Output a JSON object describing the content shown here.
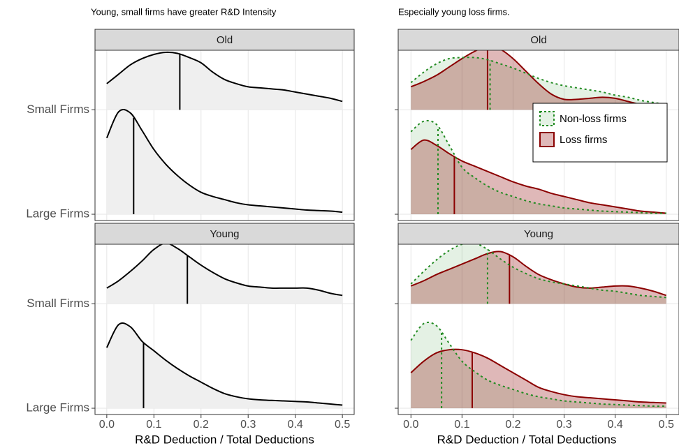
{
  "chart_data": [
    {
      "type": "ridgeline",
      "title": "Young, small firms have greater R&D Intensity",
      "x_label": "R&D Deduction / Total Deductions",
      "x": [
        0,
        0.025,
        0.05,
        0.075,
        0.1,
        0.125,
        0.15,
        0.175,
        0.2,
        0.225,
        0.25,
        0.275,
        0.3,
        0.325,
        0.35,
        0.375,
        0.4,
        0.425,
        0.45,
        0.475,
        0.5
      ],
      "xlim": [
        -0.025,
        0.525
      ],
      "xticks": [
        {
          "value": 0,
          "label": "0.0"
        },
        0.1,
        0.2,
        0.3,
        0.4,
        0.5
      ],
      "ylim": [
        -0.06,
        1.57
      ],
      "grid": true,
      "categories": [
        "Small Firms",
        "Large Firms"
      ],
      "series": [
        {
          "color": "#000000",
          "fill": "#efefef",
          "line_style": "solid"
        }
      ],
      "facets": [
        {
          "label": "Old",
          "ridges": [
            {
              "densities": [
                {
                  "values": [
                    0.25,
                    0.34,
                    0.43,
                    0.49,
                    0.53,
                    0.55,
                    0.54,
                    0.5,
                    0.45,
                    0.36,
                    0.29,
                    0.25,
                    0.22,
                    0.21,
                    0.2,
                    0.19,
                    0.17,
                    0.15,
                    0.13,
                    0.11,
                    0.08
                  ],
                  "median": 0.155
                }
              ]
            },
            {
              "densities": [
                {
                  "values": [
                    0.73,
                    0.98,
                    0.97,
                    0.8,
                    0.62,
                    0.48,
                    0.37,
                    0.28,
                    0.21,
                    0.17,
                    0.14,
                    0.11,
                    0.09,
                    0.08,
                    0.07,
                    0.06,
                    0.05,
                    0.04,
                    0.035,
                    0.03,
                    0.02
                  ],
                  "median": 0.057
                }
              ]
            }
          ]
        },
        {
          "label": "Young",
          "ridges": [
            {
              "densities": [
                {
                  "values": [
                    0.15,
                    0.22,
                    0.31,
                    0.41,
                    0.52,
                    0.58,
                    0.53,
                    0.45,
                    0.37,
                    0.3,
                    0.24,
                    0.2,
                    0.17,
                    0.16,
                    0.15,
                    0.15,
                    0.15,
                    0.15,
                    0.13,
                    0.1,
                    0.08
                  ],
                  "median": 0.171
                }
              ]
            },
            {
              "densities": [
                {
                  "values": [
                    0.58,
                    0.8,
                    0.78,
                    0.64,
                    0.55,
                    0.46,
                    0.38,
                    0.31,
                    0.25,
                    0.19,
                    0.14,
                    0.11,
                    0.09,
                    0.08,
                    0.075,
                    0.07,
                    0.065,
                    0.06,
                    0.05,
                    0.04,
                    0.03
                  ],
                  "median": 0.078
                }
              ]
            }
          ]
        }
      ]
    },
    {
      "type": "ridgeline",
      "title": "Especially young loss firms.",
      "x_label": "R&D Deduction / Total Deductions",
      "x": [
        0,
        0.025,
        0.05,
        0.075,
        0.1,
        0.125,
        0.15,
        0.175,
        0.2,
        0.225,
        0.25,
        0.275,
        0.3,
        0.325,
        0.35,
        0.375,
        0.4,
        0.425,
        0.45,
        0.475,
        0.5
      ],
      "xlim": [
        -0.025,
        0.525
      ],
      "xticks": [
        {
          "value": 0,
          "label": "0.0"
        },
        0.1,
        0.2,
        0.3,
        0.4,
        0.5
      ],
      "ylim": [
        -0.06,
        1.57
      ],
      "grid": true,
      "legend": "upper right",
      "categories": [
        null,
        null
      ],
      "series": [
        {
          "name": "Non-loss firms",
          "color": "#228b22",
          "fill": "rgba(34,139,34,0.12)",
          "line_style": "dotted"
        },
        {
          "name": "Loss firms",
          "color": "#8b0000",
          "fill": "rgba(139,0,0,0.28)",
          "line_style": "solid"
        }
      ],
      "facets": [
        {
          "label": "Old",
          "ridges": [
            {
              "densities": [
                {
                  "values": [
                    0.26,
                    0.36,
                    0.44,
                    0.49,
                    0.5,
                    0.5,
                    0.48,
                    0.44,
                    0.4,
                    0.35,
                    0.3,
                    0.26,
                    0.23,
                    0.21,
                    0.19,
                    0.17,
                    0.14,
                    0.12,
                    0.09,
                    0.07,
                    0.05
                  ],
                  "median": 0.155
                },
                {
                  "values": [
                    0.22,
                    0.27,
                    0.33,
                    0.41,
                    0.49,
                    0.56,
                    0.61,
                    0.58,
                    0.49,
                    0.37,
                    0.25,
                    0.15,
                    0.1,
                    0.1,
                    0.11,
                    0.12,
                    0.11,
                    0.08,
                    0.05,
                    0.03,
                    0.02
                  ],
                  "median": 0.15
                }
              ]
            },
            {
              "densities": [
                {
                  "values": [
                    0.79,
                    0.89,
                    0.86,
                    0.66,
                    0.45,
                    0.35,
                    0.27,
                    0.21,
                    0.17,
                    0.13,
                    0.1,
                    0.08,
                    0.06,
                    0.05,
                    0.04,
                    0.03,
                    0.025,
                    0.02,
                    0.015,
                    0.01,
                    0.01
                  ],
                  "median": 0.053
                },
                {
                  "values": [
                    0.62,
                    0.71,
                    0.66,
                    0.58,
                    0.51,
                    0.46,
                    0.41,
                    0.36,
                    0.31,
                    0.27,
                    0.24,
                    0.2,
                    0.17,
                    0.14,
                    0.11,
                    0.09,
                    0.07,
                    0.05,
                    0.03,
                    0.02,
                    0.01
                  ],
                  "median": 0.085
                }
              ]
            }
          ]
        },
        {
          "label": "Young",
          "ridges": [
            {
              "densities": [
                {
                  "values": [
                    0.19,
                    0.31,
                    0.42,
                    0.51,
                    0.57,
                    0.58,
                    0.52,
                    0.43,
                    0.35,
                    0.29,
                    0.24,
                    0.21,
                    0.19,
                    0.17,
                    0.15,
                    0.13,
                    0.12,
                    0.1,
                    0.08,
                    0.07,
                    0.06
                  ],
                  "median": 0.15
                },
                {
                  "values": [
                    0.17,
                    0.22,
                    0.28,
                    0.33,
                    0.38,
                    0.43,
                    0.48,
                    0.5,
                    0.45,
                    0.36,
                    0.28,
                    0.23,
                    0.19,
                    0.16,
                    0.15,
                    0.16,
                    0.17,
                    0.17,
                    0.15,
                    0.12,
                    0.08
                  ],
                  "median": 0.193
                }
              ]
            },
            {
              "densities": [
                {
                  "values": [
                    0.65,
                    0.81,
                    0.79,
                    0.62,
                    0.45,
                    0.35,
                    0.27,
                    0.22,
                    0.18,
                    0.14,
                    0.11,
                    0.09,
                    0.07,
                    0.06,
                    0.05,
                    0.04,
                    0.035,
                    0.03,
                    0.025,
                    0.02,
                    0.02
                  ],
                  "median": 0.06
                },
                {
                  "values": [
                    0.34,
                    0.45,
                    0.53,
                    0.56,
                    0.56,
                    0.53,
                    0.48,
                    0.41,
                    0.34,
                    0.27,
                    0.2,
                    0.16,
                    0.13,
                    0.11,
                    0.1,
                    0.09,
                    0.08,
                    0.07,
                    0.06,
                    0.055,
                    0.05
                  ],
                  "median": 0.12
                }
              ]
            }
          ]
        }
      ]
    }
  ]
}
